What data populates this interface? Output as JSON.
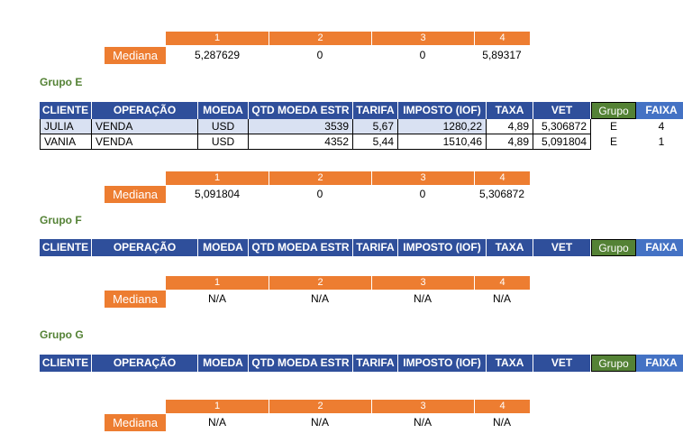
{
  "columns_header": [
    "1",
    "2",
    "3",
    "4"
  ],
  "mediana_label": "Mediana",
  "top_block": {
    "values": [
      "5,287629",
      "0",
      "0",
      "5,89317"
    ]
  },
  "groups": [
    {
      "title": "Grupo E",
      "headers": [
        "CLIENTE",
        "OPERAÇÃO",
        "MOEDA",
        "QTD MOEDA ESTR",
        "TARIFA",
        "IMPOSTO (IOF)",
        "TAXA",
        "VET",
        "Grupo",
        "FAIXA"
      ],
      "rows": [
        {
          "cliente": "JULIA",
          "operacao": "VENDA",
          "moeda": "USD",
          "qtd": "3539",
          "tarifa": "5,67",
          "imposto": "1280,22",
          "taxa": "4,89",
          "vet": "5,306872",
          "grupo": "E",
          "faixa": "4"
        },
        {
          "cliente": "VANIA",
          "operacao": "VENDA",
          "moeda": "USD",
          "qtd": "4352",
          "tarifa": "5,44",
          "imposto": "1510,46",
          "taxa": "4,89",
          "vet": "5,091804",
          "grupo": "E",
          "faixa": "1"
        }
      ],
      "mediana": [
        "5,091804",
        "0",
        "0",
        "5,306872"
      ]
    },
    {
      "title": "Grupo F",
      "headers": [
        "CLIENTE",
        "OPERAÇÃO",
        "MOEDA",
        "QTD MOEDA ESTR",
        "TARIFA",
        "IMPOSTO (IOF)",
        "TAXA",
        "VET",
        "Grupo",
        "FAIXA"
      ],
      "rows": [],
      "mediana": [
        "N/A",
        "N/A",
        "N/A",
        "N/A"
      ]
    },
    {
      "title": "Grupo G",
      "headers": [
        "CLIENTE",
        "OPERAÇÃO",
        "MOEDA",
        "QTD MOEDA ESTR",
        "TARIFA",
        "IMPOSTO (IOF)",
        "TAXA",
        "VET",
        "Grupo",
        "FAIXA"
      ],
      "rows": [],
      "mediana": [
        "N/A",
        "N/A",
        "N/A",
        "N/A"
      ]
    }
  ],
  "colors": {
    "orange": "#ed7d31",
    "blue_header": "#2f4f9b",
    "group_green": "#548235",
    "faixa_blue": "#4472c4",
    "title_green": "#548235"
  }
}
